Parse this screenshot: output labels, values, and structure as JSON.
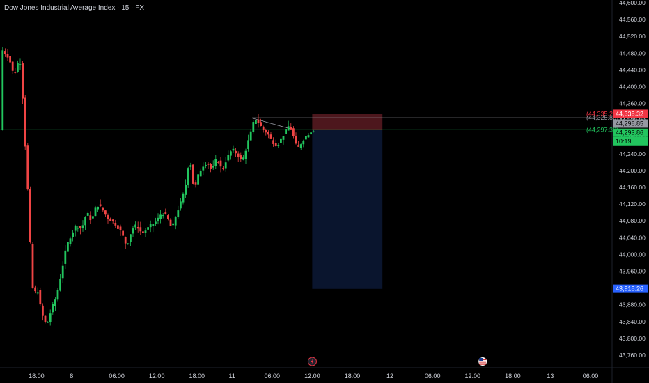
{
  "header": {
    "title": "Dow Jones Industrial Average Index · 15 · FX"
  },
  "colors": {
    "up": "#22c55e",
    "down": "#ef4444",
    "stop": "#f23645",
    "entry": "#9598a1",
    "target": "#22c55e",
    "zone_risk": "#5a1b22",
    "zone_reward": "#0b1630",
    "price_bg": "#2962ff"
  },
  "chart_data": {
    "type": "candlestick",
    "symbol": "Dow Jones Industrial Average Index",
    "interval": "15",
    "exchange": "FX",
    "ylim": [
      43740,
      44600
    ],
    "y_ticks": [
      43760,
      43800,
      43840,
      43880,
      43920,
      43960,
      44000,
      44040,
      44080,
      44120,
      44160,
      44200,
      44240,
      44280,
      44320,
      44360,
      44400,
      44440,
      44480,
      44520,
      44560,
      44600
    ],
    "y_tick_labels": [
      "43,760.00",
      "43,800.00",
      "43,840.00",
      "43,880.00",
      "43,920.00",
      "43,960.00",
      "44,000.00",
      "44,040.00",
      "44,080.00",
      "44,120.00",
      "44,160.00",
      "44,200.00",
      "44,240.00",
      "44,280.00",
      "44,320.00",
      "44,360.00",
      "44,400.00",
      "44,440.00",
      "44,480.00",
      "44,520.00",
      "44,560.00",
      "44,600.00"
    ],
    "x_ticks": [
      {
        "label": "18:00",
        "bar": 14
      },
      {
        "label": "8",
        "bar": 28
      },
      {
        "label": "06:00",
        "bar": 46
      },
      {
        "label": "12:00",
        "bar": 62
      },
      {
        "label": "18:00",
        "bar": 78
      },
      {
        "label": "11",
        "bar": 92
      },
      {
        "label": "06:00",
        "bar": 108
      },
      {
        "label": "12:00",
        "bar": 124
      },
      {
        "label": "18:00",
        "bar": 140
      },
      {
        "label": "12",
        "bar": 155
      },
      {
        "label": "06:00",
        "bar": 172
      },
      {
        "label": "12:00",
        "bar": 188
      },
      {
        "label": "18:00",
        "bar": 204
      },
      {
        "label": "13",
        "bar": 219
      },
      {
        "label": "06:00",
        "bar": 235
      }
    ],
    "path": [
      [
        0,
        44490
      ],
      [
        3,
        44470
      ],
      [
        5,
        44425
      ],
      [
        7,
        44465
      ],
      [
        8,
        44450
      ],
      [
        9,
        44300
      ],
      [
        9.5,
        44260
      ],
      [
        11,
        44100
      ],
      [
        12,
        43950
      ],
      [
        13,
        43890
      ],
      [
        14,
        43930
      ],
      [
        16,
        43860
      ],
      [
        18,
        43830
      ],
      [
        20,
        43870
      ],
      [
        22,
        43900
      ],
      [
        24,
        43960
      ],
      [
        26,
        44020
      ],
      [
        28,
        44050
      ],
      [
        30,
        44070
      ],
      [
        32,
        44060
      ],
      [
        34,
        44100
      ],
      [
        36,
        44080
      ],
      [
        38,
        44120
      ],
      [
        40,
        44110
      ],
      [
        42,
        44090
      ],
      [
        44,
        44080
      ],
      [
        46,
        44070
      ],
      [
        48,
        44050
      ],
      [
        50,
        44020
      ],
      [
        52,
        44060
      ],
      [
        54,
        44070
      ],
      [
        56,
        44050
      ],
      [
        58,
        44060
      ],
      [
        60,
        44070
      ],
      [
        62,
        44080
      ],
      [
        64,
        44100
      ],
      [
        66,
        44090
      ],
      [
        68,
        44060
      ],
      [
        70,
        44100
      ],
      [
        72,
        44130
      ],
      [
        74,
        44180
      ],
      [
        75,
        44240
      ],
      [
        76,
        44190
      ],
      [
        77,
        44150
      ],
      [
        78,
        44180
      ],
      [
        80,
        44210
      ],
      [
        82,
        44220
      ],
      [
        84,
        44200
      ],
      [
        86,
        44230
      ],
      [
        88,
        44200
      ],
      [
        90,
        44230
      ],
      [
        92,
        44250
      ],
      [
        94,
        44240
      ],
      [
        96,
        44220
      ],
      [
        98,
        44260
      ],
      [
        100,
        44300
      ],
      [
        101,
        44325
      ],
      [
        102,
        44320
      ],
      [
        104,
        44300
      ],
      [
        106,
        44290
      ],
      [
        108,
        44270
      ],
      [
        110,
        44260
      ],
      [
        112,
        44280
      ],
      [
        114,
        44300
      ],
      [
        115,
        44310
      ],
      [
        116,
        44290
      ],
      [
        117,
        44270
      ],
      [
        118,
        44250
      ],
      [
        120,
        44270
      ],
      [
        122,
        44285
      ],
      [
        124,
        44297
      ]
    ],
    "bars": 128,
    "last_bar": 124,
    "empty_bars_right": 110,
    "position_tool": {
      "type": "short",
      "start_bar": 124,
      "end_bar": 152,
      "stop": 44335,
      "entry": 44297,
      "target": 43918
    },
    "horizontal_lines": [
      {
        "label": "(44,335.27)",
        "price": 44335.27,
        "color": "stop"
      },
      {
        "label": "(44,325.86)",
        "price": 44325.86,
        "color": "entry"
      },
      {
        "label": "(44,297.36)",
        "price": 44297.36,
        "color": "target"
      }
    ],
    "price_labels": [
      {
        "text": "44,335.32",
        "price": 44335.32,
        "bg": "#f23645",
        "fg": "#ffffff"
      },
      {
        "text": "44,296.85",
        "price": 44312,
        "bg": "#9598a1",
        "fg": "#000000"
      },
      {
        "text": "44,293.86",
        "price": 44290,
        "bg": "#22c55e",
        "fg": "#000000"
      },
      {
        "text": "10:19",
        "price": 44270,
        "bg": "#22c55e",
        "fg": "#000000"
      },
      {
        "text": "43,918.26",
        "price": 43918.26,
        "bg": "#2962ff",
        "fg": "#ffffff"
      }
    ],
    "events": [
      {
        "name": "flash-event-icon",
        "bar": 124
      },
      {
        "name": "us-flag-event-icon",
        "bar": 192
      }
    ]
  }
}
